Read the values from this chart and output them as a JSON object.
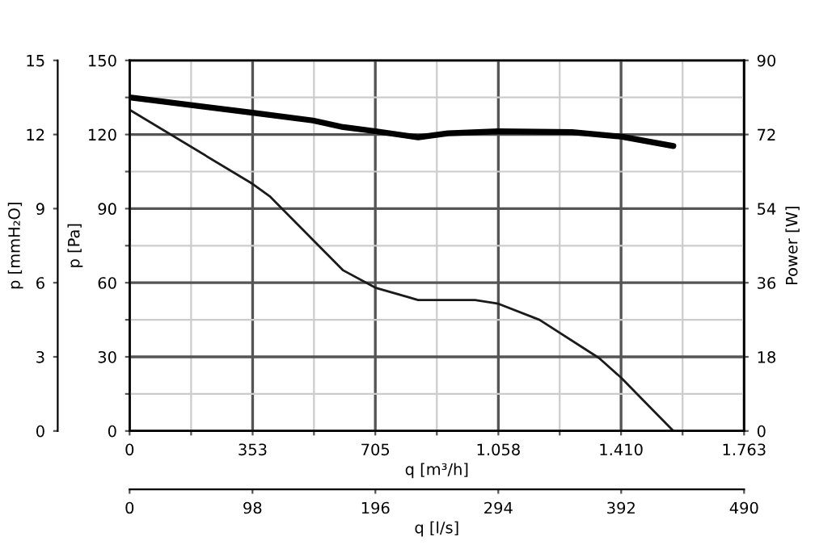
{
  "chart_data": {
    "type": "line",
    "xlabel": "q [m³/h]",
    "ylabel": "p [Pa]",
    "y2label": "Power [W]",
    "y3label": "p [mmH₂O]",
    "x2label": "q [l/s]",
    "xlim": [
      0,
      1763
    ],
    "xticks": [
      0,
      {
        "value": 176.5,
        "label": null
      },
      353,
      {
        "value": 529,
        "label": null
      },
      705,
      {
        "value": 881.5,
        "label": null
      },
      {
        "value": 1058,
        "label": "1.058"
      },
      {
        "value": 1234,
        "label": null
      },
      {
        "value": 1410,
        "label": "1.410"
      },
      {
        "value": 1586.5,
        "label": null
      },
      {
        "value": 1763,
        "label": "1.763"
      }
    ],
    "ylim": [
      0,
      150
    ],
    "yticks": [
      0,
      {
        "value": 15,
        "label": null
      },
      30,
      {
        "value": 45,
        "label": null
      },
      60,
      {
        "value": 75,
        "label": null
      },
      90,
      {
        "value": 105,
        "label": null
      },
      120,
      {
        "value": 135,
        "label": null
      },
      150
    ],
    "y2lim": [
      0,
      90
    ],
    "y2ticks": [
      0,
      18,
      36,
      54,
      72,
      90
    ],
    "y3lim": [
      0,
      15
    ],
    "y3ticks": [
      0,
      3,
      6,
      9,
      12,
      15
    ],
    "x2lim": [
      0,
      490
    ],
    "x2ticks": [
      0,
      98,
      196,
      294,
      392,
      490
    ],
    "grid": true,
    "series": [
      {
        "color": "#1a1a1a",
        "x": [
          0,
          353,
          402,
          613,
          705,
          828,
          991,
          1058,
          1176,
          1347,
          1410,
          1560
        ],
        "values": [
          130,
          100,
          95,
          65,
          58,
          53,
          53,
          51.5,
          45,
          29.5,
          21.6,
          0
        ]
      },
      {
        "color": "#000000",
        "axis": "y2",
        "x": [
          0,
          353,
          526,
          613,
          705,
          828,
          913,
          1058,
          1269,
          1410,
          1560
        ],
        "values": [
          81,
          77.3,
          75.4,
          73.8,
          72.8,
          71.3,
          72.3,
          72.8,
          72.6,
          71.5,
          69.2
        ]
      }
    ]
  }
}
